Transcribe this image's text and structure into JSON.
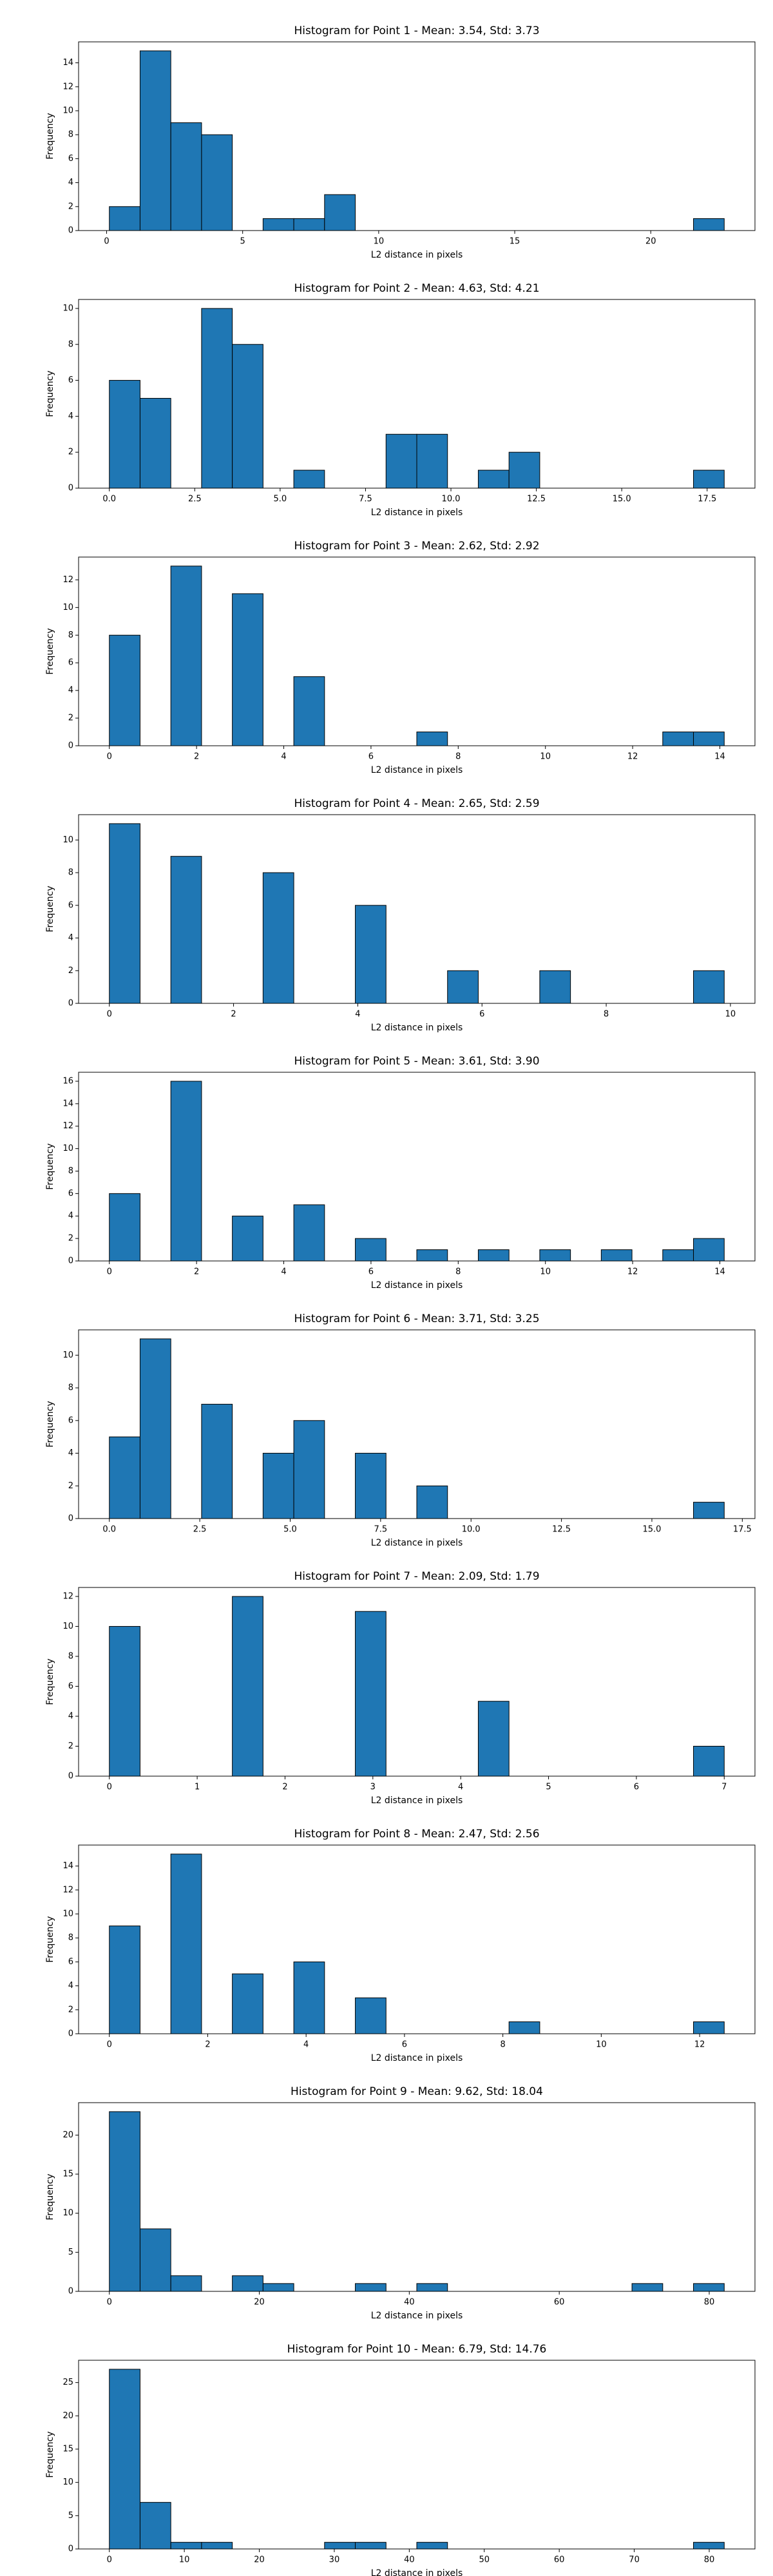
{
  "chart_data": [
    {
      "type": "histogram",
      "title": "Histogram for Point 1 - Mean: 3.54, Std: 3.73",
      "x_label": "L2 distance in pixels",
      "y_label": "Frequency",
      "color": "#1f77b4",
      "bins": [
        0.1,
        1.23,
        2.36,
        3.49,
        4.62,
        5.75,
        6.88,
        8.01,
        9.14,
        10.27,
        11.4,
        12.53,
        13.66,
        14.79,
        15.92,
        17.05,
        18.18,
        19.31,
        20.44,
        21.57,
        22.7
      ],
      "values": [
        2,
        15,
        9,
        8,
        0,
        1,
        1,
        3,
        0,
        0,
        0,
        0,
        0,
        0,
        0,
        0,
        0,
        0,
        0,
        1
      ],
      "xlim": [
        -1.03,
        23.83
      ],
      "xticks": [
        0,
        5,
        10,
        15,
        20
      ],
      "ylim": [
        0,
        15.75
      ],
      "yticks": [
        0,
        2,
        4,
        6,
        8,
        10,
        12,
        14
      ]
    },
    {
      "type": "histogram",
      "title": "Histogram for Point 2 - Mean: 4.63, Std: 4.21",
      "x_label": "L2 distance in pixels",
      "y_label": "Frequency",
      "color": "#1f77b4",
      "bins": [
        0,
        0.9,
        1.8,
        2.7,
        3.6,
        4.5,
        5.4,
        6.3,
        7.2,
        8.1,
        9,
        9.9,
        10.8,
        11.7,
        12.6,
        13.5,
        14.4,
        15.3,
        16.2,
        17.1,
        18
      ],
      "values": [
        6,
        5,
        0,
        10,
        8,
        0,
        1,
        0,
        0,
        3,
        3,
        0,
        1,
        2,
        0,
        0,
        0,
        0,
        0,
        1
      ],
      "xlim": [
        -0.9,
        18.9
      ],
      "xticks": [
        {
          "value": 0,
          "label": "0.0"
        },
        2.5,
        {
          "value": 5,
          "label": "5.0"
        },
        7.5,
        {
          "value": 10,
          "label": "10.0"
        },
        12.5,
        {
          "value": 15,
          "label": "15.0"
        },
        17.5
      ],
      "ylim": [
        0,
        10.5
      ],
      "yticks": [
        0,
        2,
        4,
        6,
        8,
        10
      ]
    },
    {
      "type": "histogram",
      "title": "Histogram for Point 3 - Mean: 2.62, Std: 2.92",
      "x_label": "L2 distance in pixels",
      "y_label": "Frequency",
      "color": "#1f77b4",
      "bins": [
        0,
        0.705,
        1.41,
        2.115,
        2.82,
        3.525,
        4.23,
        4.935,
        5.64,
        6.345,
        7.05,
        7.755,
        8.46,
        9.165,
        9.87,
        10.575,
        11.28,
        11.985,
        12.69,
        13.395,
        14.1
      ],
      "values": [
        8,
        0,
        13,
        0,
        11,
        0,
        5,
        0,
        0,
        0,
        1,
        0,
        0,
        0,
        0,
        0,
        0,
        0,
        1,
        1
      ],
      "xlim": [
        -0.705,
        14.805
      ],
      "xticks": [
        0,
        2,
        4,
        6,
        8,
        10,
        12,
        14
      ],
      "ylim": [
        0,
        13.65
      ],
      "yticks": [
        0,
        2,
        4,
        6,
        8,
        10,
        12
      ]
    },
    {
      "type": "histogram",
      "title": "Histogram for Point 4 - Mean: 2.65, Std: 2.59",
      "x_label": "L2 distance in pixels",
      "y_label": "Frequency",
      "color": "#1f77b4",
      "bins": [
        0,
        0.495,
        0.99,
        1.485,
        1.98,
        2.475,
        2.97,
        3.465,
        3.96,
        4.455,
        4.95,
        5.445,
        5.94,
        6.435,
        6.93,
        7.425,
        7.92,
        8.415,
        8.91,
        9.405,
        9.9
      ],
      "values": [
        11,
        0,
        9,
        0,
        0,
        8,
        0,
        0,
        6,
        0,
        0,
        2,
        0,
        0,
        2,
        0,
        0,
        0,
        0,
        2
      ],
      "xlim": [
        -0.495,
        10.395
      ],
      "xticks": [
        0,
        2,
        4,
        6,
        8,
        10
      ],
      "ylim": [
        0,
        11.55
      ],
      "yticks": [
        0,
        2,
        4,
        6,
        8,
        10
      ]
    },
    {
      "type": "histogram",
      "title": "Histogram for Point 5 - Mean: 3.61, Std: 3.90",
      "x_label": "L2 distance in pixels",
      "y_label": "Frequency",
      "color": "#1f77b4",
      "bins": [
        0,
        0.705,
        1.41,
        2.115,
        2.82,
        3.525,
        4.23,
        4.935,
        5.64,
        6.345,
        7.05,
        7.755,
        8.46,
        9.165,
        9.87,
        10.575,
        11.28,
        11.985,
        12.69,
        13.395,
        14.1
      ],
      "values": [
        6,
        0,
        16,
        0,
        4,
        0,
        5,
        0,
        2,
        0,
        1,
        0,
        1,
        0,
        1,
        0,
        1,
        0,
        1,
        2
      ],
      "xlim": [
        -0.705,
        14.805
      ],
      "xticks": [
        0,
        2,
        4,
        6,
        8,
        10,
        12,
        14
      ],
      "ylim": [
        0,
        16.8
      ],
      "yticks": [
        0,
        2,
        4,
        6,
        8,
        10,
        12,
        14,
        16
      ]
    },
    {
      "type": "histogram",
      "title": "Histogram for Point 6 - Mean: 3.71, Std: 3.25",
      "x_label": "L2 distance in pixels",
      "y_label": "Frequency",
      "color": "#1f77b4",
      "bins": [
        0,
        0.85,
        1.7,
        2.55,
        3.4,
        4.25,
        5.1,
        5.95,
        6.8,
        7.65,
        8.5,
        9.35,
        10.2,
        11.05,
        11.9,
        12.75,
        13.6,
        14.45,
        15.3,
        16.15,
        17
      ],
      "values": [
        5,
        11,
        0,
        7,
        0,
        4,
        6,
        0,
        4,
        0,
        2,
        0,
        0,
        0,
        0,
        0,
        0,
        0,
        0,
        1
      ],
      "xlim": [
        -0.85,
        17.85
      ],
      "xticks": [
        {
          "value": 0,
          "label": "0.0"
        },
        2.5,
        {
          "value": 5,
          "label": "5.0"
        },
        7.5,
        {
          "value": 10,
          "label": "10.0"
        },
        12.5,
        {
          "value": 15,
          "label": "15.0"
        },
        17.5
      ],
      "ylim": [
        0,
        11.55
      ],
      "yticks": [
        0,
        2,
        4,
        6,
        8,
        10
      ]
    },
    {
      "type": "histogram",
      "title": "Histogram for Point 7 - Mean: 2.09, Std: 1.79",
      "x_label": "L2 distance in pixels",
      "y_label": "Frequency",
      "color": "#1f77b4",
      "bins": [
        0,
        0.35,
        0.7,
        1.05,
        1.4,
        1.75,
        2.1,
        2.45,
        2.8,
        3.15,
        3.5,
        3.85,
        4.2,
        4.55,
        4.9,
        5.25,
        5.6,
        5.95,
        6.3,
        6.65,
        7
      ],
      "values": [
        10,
        0,
        0,
        0,
        12,
        0,
        0,
        0,
        11,
        0,
        0,
        0,
        5,
        0,
        0,
        0,
        0,
        0,
        0,
        2
      ],
      "xlim": [
        -0.35,
        7.35
      ],
      "xticks": [
        0,
        1,
        2,
        3,
        4,
        5,
        6,
        7
      ],
      "ylim": [
        0,
        12.6
      ],
      "yticks": [
        0,
        2,
        4,
        6,
        8,
        10,
        12
      ]
    },
    {
      "type": "histogram",
      "title": "Histogram for Point 8 - Mean: 2.47, Std: 2.56",
      "x_label": "L2 distance in pixels",
      "y_label": "Frequency",
      "color": "#1f77b4",
      "bins": [
        0,
        0.625,
        1.25,
        1.875,
        2.5,
        3.125,
        3.75,
        4.375,
        5,
        5.625,
        6.25,
        6.875,
        7.5,
        8.125,
        8.75,
        9.375,
        10,
        10.625,
        11.25,
        11.875,
        12.5
      ],
      "values": [
        9,
        0,
        15,
        0,
        5,
        0,
        6,
        0,
        3,
        0,
        0,
        0,
        0,
        1,
        0,
        0,
        0,
        0,
        0,
        1
      ],
      "xlim": [
        -0.625,
        13.125
      ],
      "xticks": [
        0,
        2,
        4,
        6,
        8,
        10,
        12
      ],
      "ylim": [
        0,
        15.75
      ],
      "yticks": [
        0,
        2,
        4,
        6,
        8,
        10,
        12,
        14
      ]
    },
    {
      "type": "histogram",
      "title": "Histogram for Point 9 - Mean: 9.62, Std: 18.04",
      "x_label": "L2 distance in pixels",
      "y_label": "Frequency",
      "color": "#1f77b4",
      "bins": [
        0,
        4.1,
        8.2,
        12.3,
        16.4,
        20.5,
        24.6,
        28.7,
        32.8,
        36.9,
        41,
        45.1,
        49.2,
        53.3,
        57.4,
        61.5,
        65.6,
        69.7,
        73.8,
        77.9,
        82
      ],
      "values": [
        23,
        8,
        2,
        0,
        2,
        1,
        0,
        0,
        1,
        0,
        1,
        0,
        0,
        0,
        0,
        0,
        0,
        1,
        0,
        1
      ],
      "xlim": [
        -4.1,
        86.1
      ],
      "xticks": [
        0,
        20,
        40,
        60,
        80
      ],
      "ylim": [
        0,
        24.15
      ],
      "yticks": [
        0,
        5,
        10,
        15,
        20
      ]
    },
    {
      "type": "histogram",
      "title": "Histogram for Point 10 - Mean: 6.79, Std: 14.76",
      "x_label": "L2 distance in pixels",
      "y_label": "Frequency",
      "color": "#1f77b4",
      "bins": [
        0,
        4.1,
        8.2,
        12.3,
        16.4,
        20.5,
        24.6,
        28.7,
        32.8,
        36.9,
        41,
        45.1,
        49.2,
        53.3,
        57.4,
        61.5,
        65.6,
        69.7,
        73.8,
        77.9,
        82
      ],
      "values": [
        27,
        7,
        1,
        1,
        0,
        0,
        0,
        1,
        1,
        0,
        1,
        0,
        0,
        0,
        0,
        0,
        0,
        0,
        0,
        1
      ],
      "xlim": [
        -4.1,
        86.1
      ],
      "xticks": [
        0,
        10,
        20,
        30,
        40,
        50,
        60,
        70,
        80
      ],
      "ylim": [
        0,
        28.35
      ],
      "yticks": [
        0,
        5,
        10,
        15,
        20,
        25
      ]
    }
  ]
}
